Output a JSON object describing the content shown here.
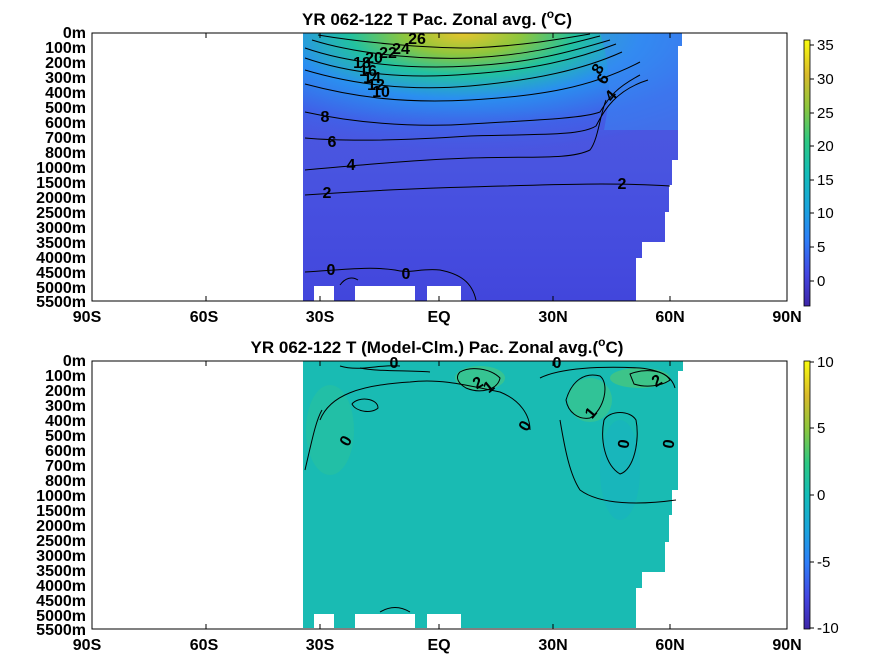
{
  "chart_data": [
    {
      "type": "heatmap",
      "title_prefix": "YR 062-122 T Pac. Zonal avg. (",
      "title_sup": "o",
      "title_suffix": "C)",
      "x_ticks": [
        "90S",
        "60S",
        "30S",
        "EQ",
        "30N",
        "60N",
        "90N"
      ],
      "y_ticks": [
        "0m",
        "100m",
        "200m",
        "300m",
        "400m",
        "500m",
        "600m",
        "700m",
        "800m",
        "1000m",
        "1500m",
        "2000m",
        "2500m",
        "3000m",
        "3500m",
        "4000m",
        "4500m",
        "5000m",
        "5500m"
      ],
      "colorbar_ticks": [
        "35",
        "30",
        "25",
        "20",
        "15",
        "10",
        "5",
        "0"
      ],
      "colorbar_range": [
        -3,
        36
      ],
      "contour_labels": [
        "26",
        "24",
        "22",
        "20",
        "18",
        "16",
        "14",
        "12",
        "10",
        "8",
        "6",
        "4",
        "2",
        "0",
        "0",
        "2",
        "4",
        "6",
        "8"
      ],
      "grid": false
    },
    {
      "type": "heatmap",
      "title_prefix": "YR 062-122 T (Model-Clm.) Pac. Zonal avg.(",
      "title_sup": "o",
      "title_suffix": "C)",
      "x_ticks": [
        "90S",
        "60S",
        "30S",
        "EQ",
        "30N",
        "60N",
        "90N"
      ],
      "y_ticks": [
        "0m",
        "100m",
        "200m",
        "300m",
        "400m",
        "500m",
        "600m",
        "700m",
        "800m",
        "1000m",
        "1500m",
        "2000m",
        "2500m",
        "3000m",
        "3500m",
        "4000m",
        "4500m",
        "5000m",
        "5500m"
      ],
      "colorbar_ticks": [
        "10",
        "5",
        "0",
        "-5",
        "-10"
      ],
      "colorbar_range": [
        -10,
        10
      ],
      "contour_labels": [
        "0",
        "0",
        "2",
        "1",
        "1",
        "2",
        "0",
        "0",
        "0",
        "0"
      ],
      "grid": false
    }
  ],
  "colors": {
    "parula_dark": "#3e26a8",
    "parula_mid": "#13bdb8",
    "parula_light": "#f9fb0e"
  }
}
